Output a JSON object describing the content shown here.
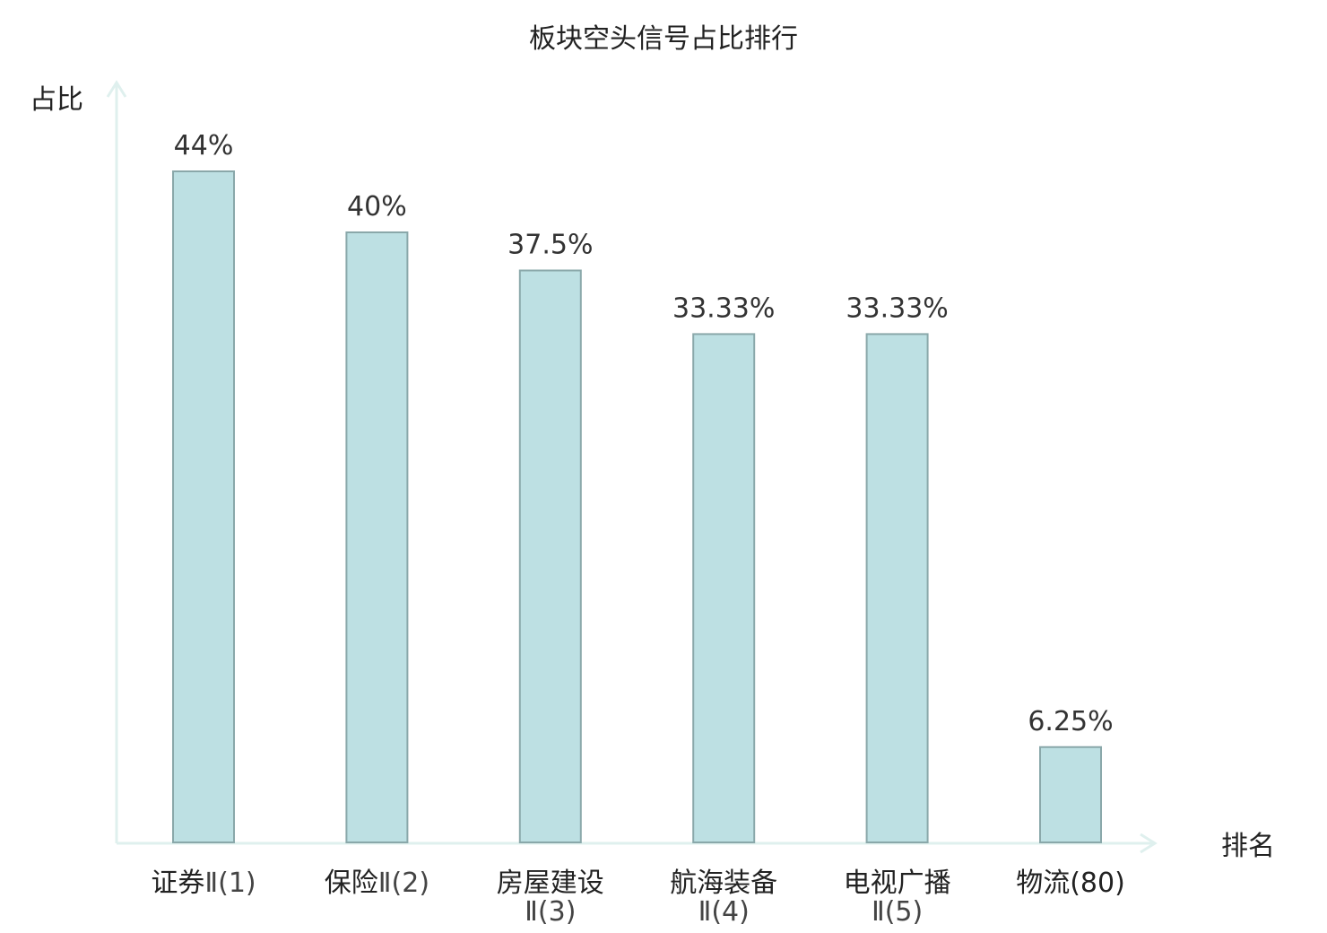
{
  "chart_data": {
    "type": "bar",
    "title": "板块空头信号占比排行",
    "ylabel": "占比",
    "xlabel": "排名",
    "ylim": [
      0,
      48
    ],
    "grid": false,
    "unit": "%",
    "categories": [
      {
        "name": "证券",
        "suffix": "Ⅱ(1)"
      },
      {
        "name": "保险",
        "suffix": "Ⅱ(2)"
      },
      {
        "name": "房屋建设",
        "suffix": "Ⅱ(3)"
      },
      {
        "name": "航海装备",
        "suffix": "Ⅱ(4)"
      },
      {
        "name": "电视广播",
        "suffix": "Ⅱ(5)"
      },
      {
        "name": "物流",
        "suffix": "(80)"
      }
    ],
    "values": [
      44,
      40,
      37.5,
      33.33,
      33.33,
      6.25
    ],
    "value_labels": [
      "44%",
      "40%",
      "37.5%",
      "33.33%",
      "33.33%",
      "6.25%"
    ],
    "highlight_index": 5,
    "colors": {
      "bar_fill": "#bde0e3",
      "bar_stroke": "#8aa8aa",
      "axis": "#dff0ee",
      "highlight_text": "#e00000"
    }
  }
}
